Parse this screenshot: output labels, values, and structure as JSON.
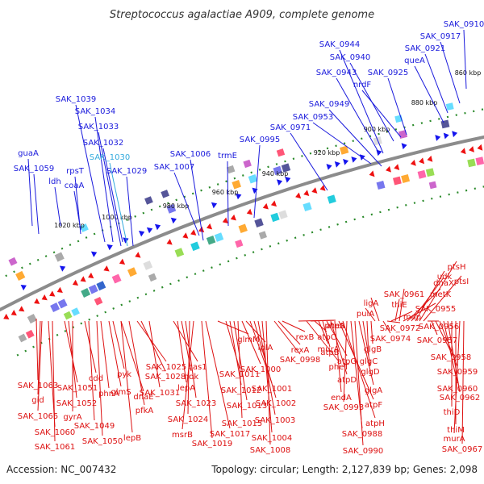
{
  "title": "Streptococcus agalactiae A909, complete genome",
  "footer": {
    "accession": "Accession: NC_007432",
    "stats": "Topology: circular; Length: 2,127,839 bp; Genes: 2,098"
  },
  "colors": {
    "forward_label": "#1a1adc",
    "highlight_label": "#33aadd",
    "reverse_label": "#dd1111",
    "backbone": "#8c8c8c",
    "tick": "#2a8a2a",
    "forward_gene": "#1515ee",
    "reverse_gene": "#ee1111"
  },
  "kbp_ticks": [
    "1020 kbp",
    "1000 kbp",
    "980 kbp",
    "960 kbp",
    "940 kbp",
    "920 kbp",
    "900 kbp",
    "880 kbp",
    "860 kbp"
  ],
  "forward_labels": [
    "guaA",
    "SAK_1059",
    "ldh",
    "rpsT",
    "coaA",
    "SAK_1039",
    "SAK_1034",
    "SAK_1033",
    "SAK_1032",
    "SAK_1030",
    "SAK_1029",
    "SAK_1006",
    "SAK_1007",
    "trmE",
    "SAK_0995",
    "SAK_0971",
    "SAK_0953",
    "SAK_0949",
    "SAK_0943",
    "SAK_0944",
    "SAK_0940",
    "nrdF",
    "SAK_0925",
    "queA",
    "SAK_0921",
    "SAK_0917",
    "SAK_0910"
  ],
  "reverse_labels": [
    "SAK_1063",
    "gid",
    "SAK_1065",
    "SAK_1060",
    "SAK_1061",
    "SAK_1051",
    "SAK_1052",
    "gyrA",
    "cdd",
    "SAK_1049",
    "SAK_1050",
    "phnA",
    "glmS",
    "pyk",
    "dnaE",
    "pfkA",
    "lepB",
    "SAK_1025",
    "SAK_1028",
    "SAK_1031",
    "cas1",
    "ndk",
    "lepA",
    "SAK_1023",
    "SAK_1024",
    "msrB",
    "SAK_1017",
    "SAK_1019",
    "glmM",
    "SAK_1011",
    "SAK_1012",
    "SAK_1013",
    "SAK_1015",
    "lplA",
    "SAK_1000",
    "SAK_1001",
    "SAK_1002",
    "SAK_1003",
    "SAK_1004",
    "SAK_1008",
    "rexA",
    "rexB",
    "SAK_0998",
    "pheS",
    "pheT",
    "atpA",
    "atpC",
    "murA",
    "atpB",
    "atpG",
    "atpD",
    "endA",
    "atpF",
    "atpH",
    "SAK_0993",
    "SAK_0988",
    "SAK_0990",
    "glgA",
    "glgD",
    "glgC",
    "glgB",
    "pulA",
    "ligA",
    "SAK_0974",
    "SAK_0972",
    "map",
    "thiE",
    "SAK_0961",
    "SAK_0955",
    "metK",
    "dnaX",
    "udk",
    "ptsH",
    "ptsI",
    "SAK_0956",
    "SAK_0957",
    "SAK_0958",
    "SAK_0959",
    "SAK_0960",
    "SAK_0962",
    "thiD",
    "thiM",
    "murA",
    "SAK_0967"
  ]
}
